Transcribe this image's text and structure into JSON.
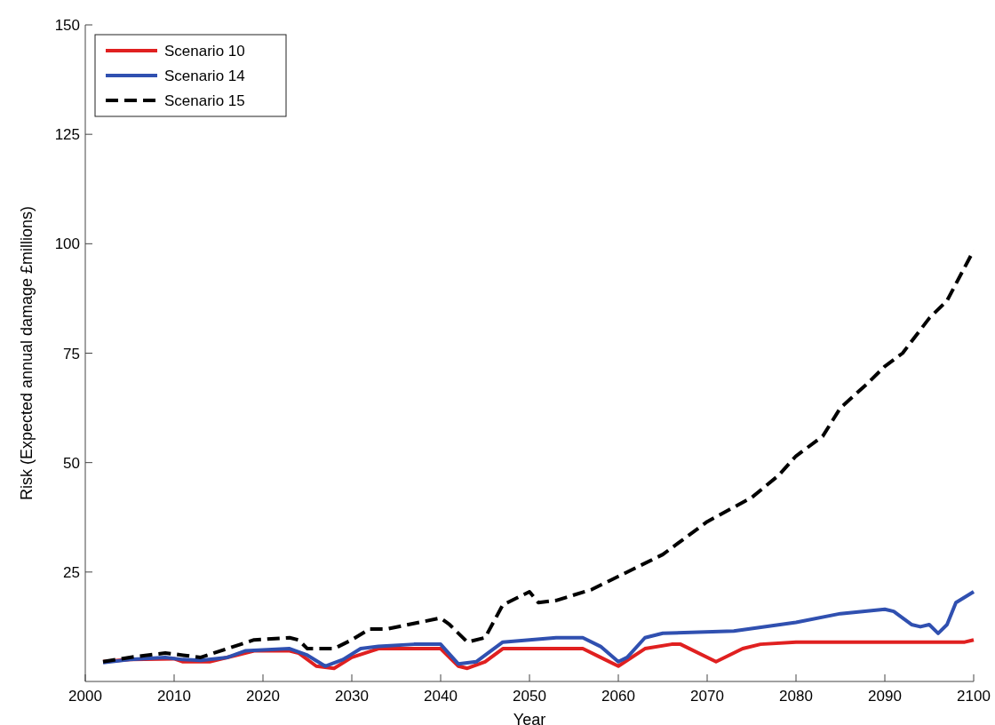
{
  "chart_data": {
    "type": "line",
    "xlabel": "Year",
    "ylabel": "Risk (Expected annual damage £millions)",
    "xlim": [
      2000,
      2100
    ],
    "xticks": [
      2000,
      2010,
      2020,
      2030,
      2040,
      2050,
      2060,
      2070,
      2080,
      2090,
      2100
    ],
    "ylim": [
      0,
      150
    ],
    "yticks": [
      25,
      50,
      75,
      100,
      125,
      150
    ],
    "legend": "top left",
    "grid": false,
    "series": [
      {
        "name": "Scenario 10",
        "color": "#e02020",
        "line_style": "solid",
        "x": [
          2002,
          2005,
          2010,
          2011,
          2014,
          2017,
          2019,
          2023,
          2024,
          2026,
          2028,
          2030,
          2033,
          2040,
          2042,
          2043,
          2045,
          2047,
          2056,
          2058,
          2060,
          2063,
          2066,
          2067,
          2071,
          2074,
          2076,
          2080,
          2099,
          2100
        ],
        "values": [
          4.5,
          5,
          5.2,
          4.5,
          4.5,
          6,
          7,
          7,
          6.5,
          3.5,
          3,
          5.5,
          7.5,
          7.5,
          3.5,
          3,
          4.5,
          7.5,
          7.5,
          5.5,
          3.5,
          7.5,
          8.5,
          8.5,
          4.5,
          7.5,
          8.5,
          9,
          9,
          9.5
        ]
      },
      {
        "name": "Scenario 14",
        "color": "#3050b0",
        "line_style": "solid",
        "x": [
          2002,
          2005,
          2009,
          2011,
          2013,
          2016,
          2018,
          2023,
          2025,
          2027,
          2029,
          2031,
          2033,
          2037,
          2040,
          2042,
          2044,
          2047,
          2050,
          2053,
          2056,
          2058,
          2060,
          2061,
          2063,
          2065,
          2073,
          2080,
          2085,
          2090,
          2091,
          2093,
          2094,
          2095,
          2096,
          2097,
          2098,
          2100
        ],
        "values": [
          4.3,
          5,
          5.5,
          5,
          4.8,
          5.5,
          7,
          7.5,
          6,
          3.5,
          5,
          7.5,
          8,
          8.5,
          8.5,
          4,
          4.5,
          9,
          9.5,
          10,
          10,
          8,
          4.5,
          5.5,
          10,
          11,
          11.5,
          13.5,
          15.5,
          16.5,
          16,
          13,
          12.5,
          13,
          11,
          13,
          18,
          20.5
        ]
      },
      {
        "name": "Scenario 15",
        "color": "#000000",
        "line_style": "dashed",
        "x": [
          2002,
          2005,
          2009,
          2011,
          2013,
          2016,
          2019,
          2023,
          2024,
          2025,
          2028,
          2030,
          2032,
          2034,
          2040,
          2041,
          2043,
          2045,
          2047,
          2050,
          2051,
          2053,
          2057,
          2060,
          2065,
          2070,
          2075,
          2078,
          2080,
          2083,
          2085,
          2088,
          2090,
          2092,
          2095,
          2097,
          2100
        ],
        "values": [
          4.5,
          5.5,
          6.5,
          6,
          5.5,
          7.5,
          9.5,
          10,
          9.5,
          7.5,
          7.5,
          9.5,
          12,
          12,
          14.5,
          13,
          9,
          10,
          17.5,
          20.5,
          18,
          18.5,
          21,
          24,
          29,
          36.5,
          42,
          47,
          51.5,
          56,
          62.5,
          68,
          72,
          75,
          83,
          87,
          98.5
        ]
      }
    ]
  }
}
